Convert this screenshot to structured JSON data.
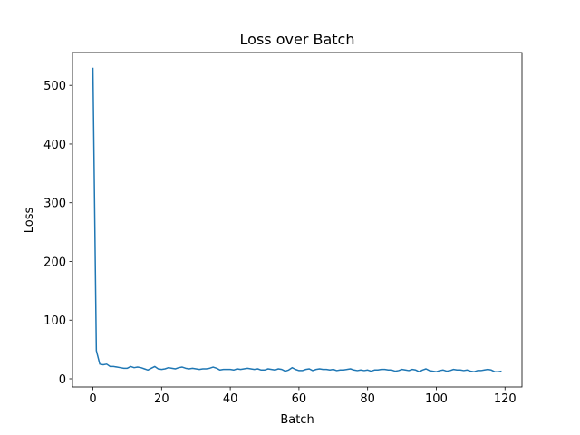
{
  "chart_data": {
    "type": "line",
    "title": "Loss over Batch",
    "x_label": "Batch",
    "y_label": "Loss",
    "x": [
      0,
      1,
      2,
      3,
      4,
      5,
      6,
      7,
      8,
      9,
      10,
      11,
      12,
      13,
      14,
      15,
      16,
      17,
      18,
      19,
      20,
      21,
      22,
      23,
      24,
      25,
      26,
      27,
      28,
      29,
      30,
      31,
      32,
      33,
      34,
      35,
      36,
      37,
      38,
      39,
      40,
      41,
      42,
      43,
      44,
      45,
      46,
      47,
      48,
      49,
      50,
      51,
      52,
      53,
      54,
      55,
      56,
      57,
      58,
      59,
      60,
      61,
      62,
      63,
      64,
      65,
      66,
      67,
      68,
      69,
      70,
      71,
      72,
      73,
      74,
      75,
      76,
      77,
      78,
      79,
      80,
      81,
      82,
      83,
      84,
      85,
      86,
      87,
      88,
      89,
      90,
      91,
      92,
      93,
      94,
      95,
      96,
      97,
      98,
      99,
      100,
      101,
      102,
      103,
      104,
      105,
      106,
      107,
      108,
      109,
      110,
      111,
      112,
      113,
      114,
      115,
      116,
      117,
      118,
      119
    ],
    "series": [
      {
        "name": "Loss",
        "color": "#1f77b4",
        "values": [
          530,
          48,
          25,
          24,
          25,
          21,
          21,
          20,
          19,
          18,
          18,
          21,
          19,
          20,
          19,
          17,
          15,
          18,
          21,
          17,
          16,
          17,
          19,
          18,
          17,
          19,
          20,
          18,
          17,
          18,
          17,
          16,
          17,
          17,
          18,
          20,
          18,
          15,
          16,
          16,
          16,
          15,
          17,
          16,
          17,
          18,
          17,
          16,
          17,
          15,
          15,
          17,
          16,
          15,
          17,
          16,
          13,
          15,
          19,
          16,
          14,
          14,
          16,
          17,
          14,
          16,
          17,
          16,
          16,
          15,
          16,
          14,
          15,
          15,
          16,
          17,
          15,
          14,
          15,
          14,
          15,
          13,
          15,
          15,
          16,
          16,
          15,
          15,
          13,
          14,
          16,
          15,
          14,
          16,
          15,
          12,
          15,
          17,
          14,
          13,
          12,
          14,
          15,
          13,
          14,
          16,
          15,
          15,
          14,
          15,
          13,
          12,
          14,
          14,
          15,
          16,
          15,
          12,
          12,
          13
        ]
      }
    ],
    "xlim": [
      -5.95,
      124.95
    ],
    "ylim": [
      -13.9,
      555.9
    ],
    "xticks": [
      0,
      20,
      40,
      60,
      80,
      100,
      120
    ],
    "yticks": [
      0,
      100,
      200,
      300,
      400,
      500
    ],
    "grid": false
  }
}
